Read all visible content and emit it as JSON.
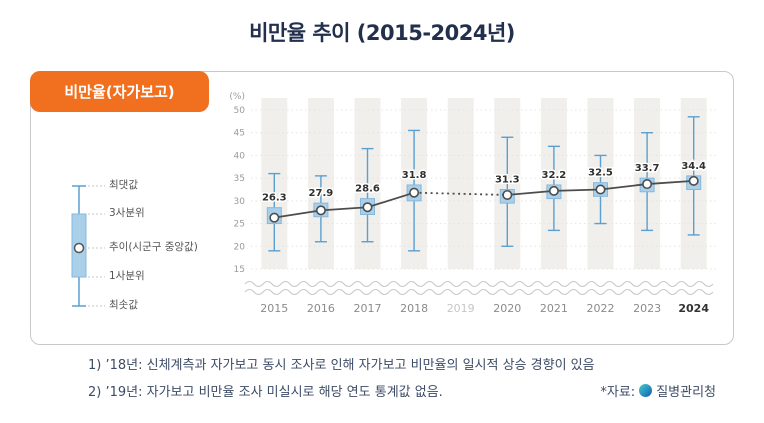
{
  "page": {
    "title": "비만율 추이 (2015-2024년)"
  },
  "panel": {
    "badge": "비만율(자가보고)"
  },
  "legend": {
    "items": [
      {
        "label": "최댓값"
      },
      {
        "label": "3사분위"
      },
      {
        "label": "추이(시군구 중앙값)"
      },
      {
        "label": "1사분위"
      },
      {
        "label": "최솟값"
      }
    ]
  },
  "chart_data": {
    "type": "boxplot-line",
    "title": "비만율 추이 (2015-2024년)",
    "unit_label": "(%)",
    "categories": [
      "2015",
      "2016",
      "2017",
      "2018",
      "2019",
      "2020",
      "2021",
      "2022",
      "2023",
      "2024"
    ],
    "missing_category": "2019",
    "emphasized_category": "2024",
    "y_ticks": [
      50,
      45,
      40,
      35,
      30,
      25,
      20,
      15
    ],
    "ylim": [
      15,
      50
    ],
    "axis_break": true,
    "grid": true,
    "series": [
      {
        "name": "추이(시군구 중앙값)",
        "values": [
          26.3,
          27.9,
          28.6,
          31.8,
          null,
          31.3,
          32.2,
          32.5,
          33.7,
          34.4
        ]
      }
    ],
    "boxes": [
      {
        "year": "2015",
        "min": 19,
        "q1": 25,
        "median": 26.3,
        "q3": 28.5,
        "max": 36,
        "label": "26.3"
      },
      {
        "year": "2016",
        "min": 21,
        "q1": 26.5,
        "median": 27.9,
        "q3": 29.5,
        "max": 35.5,
        "label": "27.9"
      },
      {
        "year": "2017",
        "min": 21,
        "q1": 27,
        "median": 28.6,
        "q3": 30.5,
        "max": 41.5,
        "label": "28.6"
      },
      {
        "year": "2018",
        "min": 19,
        "q1": 30,
        "median": 31.8,
        "q3": 33.5,
        "max": 45.5,
        "label": "31.8"
      },
      null,
      {
        "year": "2020",
        "min": 20,
        "q1": 29.5,
        "median": 31.3,
        "q3": 32.5,
        "max": 44,
        "label": "31.3"
      },
      {
        "year": "2021",
        "min": 23.5,
        "q1": 30.5,
        "median": 32.2,
        "q3": 33.5,
        "max": 42,
        "label": "32.2"
      },
      {
        "year": "2022",
        "min": 25,
        "q1": 31,
        "median": 32.5,
        "q3": 34,
        "max": 40,
        "label": "32.5"
      },
      {
        "year": "2023",
        "min": 23.5,
        "q1": 32,
        "median": 33.7,
        "q3": 35,
        "max": 45,
        "label": "33.7"
      },
      {
        "year": "2024",
        "min": 22.5,
        "q1": 32.5,
        "median": 34.4,
        "q3": 35.5,
        "max": 48.5,
        "label": "34.4"
      }
    ]
  },
  "footnotes": {
    "line1": "1) ’18년: 신체계측과 자가보고 동시 조사로 인해 자가보고 비만율의 일시적 상승 경향이 있음",
    "line2": "2) ’19년: 자가보고 비만율 조사 미실시로 해당 연도 통계값 없음.",
    "source_prefix": "*자료:",
    "source_org": "질병관리청"
  },
  "colors": {
    "accent_orange": "#f0701f",
    "title_navy": "#22304d",
    "box_fill": "#a9cfe9",
    "box_border": "#85b8dc",
    "whisker": "#5b9fd0",
    "trend_line": "#4d4d4d",
    "value_label": "#2f2f2f",
    "band": "#f1efeb",
    "footnote_text": "#3d4c66"
  }
}
